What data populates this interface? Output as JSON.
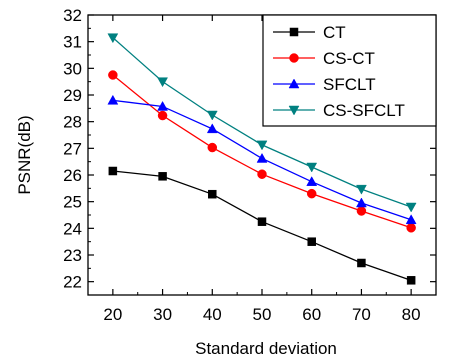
{
  "chart_data": {
    "type": "line",
    "xlabel": "Standard deviation",
    "ylabel": "PSNR(dB)",
    "x": [
      20,
      30,
      40,
      50,
      60,
      70,
      80
    ],
    "xlim": [
      15,
      85
    ],
    "ylim": [
      21.5,
      32
    ],
    "xticks": [
      "20",
      "30",
      "40",
      "50",
      "60",
      "70",
      "80"
    ],
    "yticks": [
      "22",
      "23",
      "24",
      "25",
      "26",
      "27",
      "28",
      "29",
      "30",
      "31",
      "32"
    ],
    "grid": false,
    "legend_position": "top-right",
    "series": [
      {
        "name": "CT",
        "color": "#000000",
        "marker": "square",
        "values": [
          26.15,
          25.95,
          25.28,
          24.25,
          23.5,
          22.7,
          22.05
        ]
      },
      {
        "name": "CS-CT",
        "color": "#ff0000",
        "marker": "circle",
        "values": [
          29.75,
          28.23,
          27.03,
          26.03,
          25.3,
          24.65,
          24.02
        ]
      },
      {
        "name": "SFCLT",
        "color": "#0000ff",
        "marker": "triangle-up",
        "values": [
          28.8,
          28.57,
          27.73,
          26.62,
          25.75,
          24.95,
          24.32
        ]
      },
      {
        "name": "CS-SFCLT",
        "color": "#008080",
        "marker": "triangle-down",
        "values": [
          31.15,
          29.5,
          28.25,
          27.13,
          26.3,
          25.47,
          24.8
        ]
      }
    ]
  }
}
